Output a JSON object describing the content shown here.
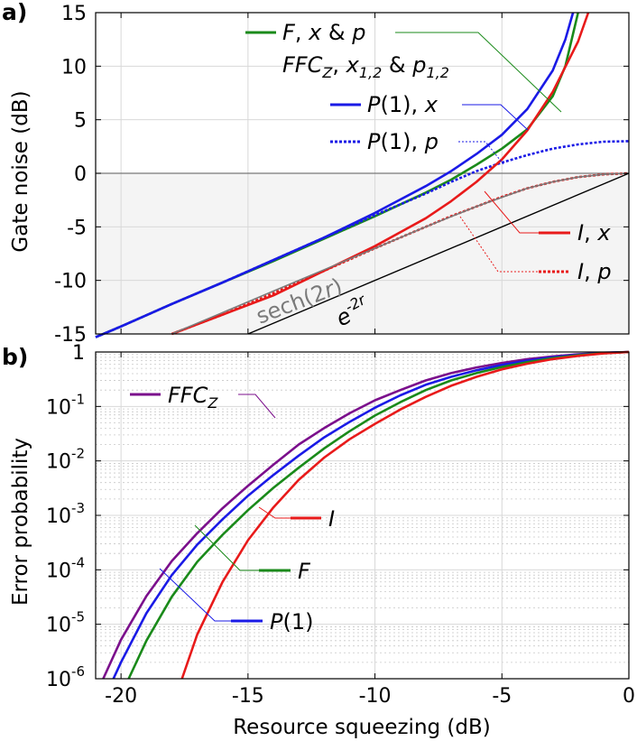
{
  "chart_data": [
    {
      "panel_label": "a)",
      "type": "line",
      "xlabel": "",
      "ylabel": "Gate noise (dB)",
      "xlim": [
        -21,
        0
      ],
      "ylim": [
        -15,
        15
      ],
      "xticks": [
        -20,
        -15,
        -10,
        -5,
        0
      ],
      "yticks": [
        15,
        10,
        5,
        0,
        -5,
        -10,
        -15
      ],
      "ytick_labels": [
        "15",
        "10",
        "5",
        "0",
        "-5",
        "-10",
        "-15"
      ],
      "shaded_region": {
        "y_from": -15,
        "y_to": 0,
        "color": "#f4f4f4"
      },
      "grid": true,
      "series": [
        {
          "name": "F, x & p",
          "color": "#1a8a1a",
          "style": "solid",
          "x": [
            -21,
            -20,
            -18,
            -16,
            -14,
            -12,
            -10,
            -8,
            -7,
            -6,
            -5,
            -4,
            -3,
            -2.5,
            -2
          ],
          "y": [
            -15.3,
            -14.3,
            -12.2,
            -10.2,
            -8.2,
            -6.1,
            -4.0,
            -1.8,
            -0.6,
            0.8,
            2.3,
            4.1,
            7.2,
            10.0,
            15.0
          ]
        },
        {
          "name": "P(1), x",
          "color": "#1a1ae6",
          "style": "solid",
          "x": [
            -21,
            -20,
            -18,
            -16,
            -14,
            -12,
            -10,
            -8,
            -7,
            -6,
            -5,
            -4,
            -3,
            -2.5,
            -2.2
          ],
          "y": [
            -15.3,
            -14.3,
            -12.2,
            -10.2,
            -8.1,
            -6.0,
            -3.7,
            -1.2,
            0.2,
            1.8,
            3.6,
            6.0,
            9.6,
            12.5,
            15.0
          ]
        },
        {
          "name": "P(1), p",
          "color": "#1a1ae6",
          "style": "dotted",
          "x": [
            -21,
            -20,
            -18,
            -16,
            -14,
            -12,
            -10,
            -8,
            -7,
            -6,
            -5,
            -4,
            -3,
            -2,
            -1,
            0
          ],
          "y": [
            -15.3,
            -14.3,
            -12.2,
            -10.2,
            -8.1,
            -6.0,
            -3.9,
            -1.9,
            -0.8,
            0.2,
            1.0,
            1.7,
            2.3,
            2.7,
            2.95,
            3.0
          ]
        },
        {
          "name": "I, x",
          "color": "#e81a1a",
          "style": "solid",
          "x": [
            -18,
            -16,
            -14,
            -12,
            -10,
            -8,
            -7,
            -6,
            -5,
            -4,
            -3,
            -2,
            -1.6
          ],
          "y": [
            -15.0,
            -13.2,
            -11.4,
            -9.1,
            -6.8,
            -4.2,
            -2.6,
            -0.8,
            1.3,
            4.0,
            7.6,
            12.3,
            15.0
          ]
        },
        {
          "name": "I, p",
          "color": "#e81a1a",
          "style": "dotted",
          "x": [
            -18,
            -16,
            -14,
            -12,
            -10,
            -8,
            -7,
            -6,
            -5,
            -4,
            -3,
            -2,
            -1,
            0
          ],
          "y": [
            -15.0,
            -13.2,
            -11.2,
            -9.1,
            -7.0,
            -5.0,
            -4.0,
            -3.1,
            -2.2,
            -1.4,
            -0.8,
            -0.35,
            -0.1,
            0.0
          ]
        },
        {
          "name": "sech(2r)",
          "color": "#7a7a7a",
          "style": "solid",
          "x": [
            -18,
            -16,
            -14,
            -12,
            -10,
            -8,
            -6,
            -4,
            -3,
            -2,
            -1,
            0
          ],
          "y": [
            -15.0,
            -13.0,
            -11.0,
            -9.0,
            -7.0,
            -5.0,
            -3.1,
            -1.4,
            -0.8,
            -0.35,
            -0.1,
            0.0
          ]
        },
        {
          "name": "e^{-2r}",
          "color": "#000000",
          "style": "solid",
          "x": [
            -15,
            0
          ],
          "y": [
            -15,
            0
          ]
        }
      ],
      "legend": [
        {
          "text": "F, x & p"
        },
        {
          "text": "FFCZ, x1,2 & p1,2"
        },
        {
          "text": "P(1), x"
        },
        {
          "text": "P(1), p"
        },
        {
          "text": "I, x"
        },
        {
          "text": "I, p"
        }
      ],
      "annotations": [
        "sech(2r)",
        "e-2r"
      ]
    },
    {
      "panel_label": "b)",
      "type": "line",
      "xlabel": "Resource squeezing (dB)",
      "ylabel": "Error probability",
      "xlim": [
        -21,
        0
      ],
      "yscale": "log",
      "ylim": [
        1e-06,
        1.0
      ],
      "xticks": [
        -20,
        -15,
        -10,
        -5,
        0
      ],
      "xtick_labels": [
        "-20",
        "-15",
        "-10",
        "-5",
        "0"
      ],
      "yticks": [
        1,
        0.1,
        0.01,
        0.001,
        0.0001,
        1e-05,
        1e-06
      ],
      "grid": true,
      "series": [
        {
          "name": "FFCZ",
          "color": "#7b0f8c",
          "style": "solid",
          "x": [
            -20.7,
            -20,
            -19,
            -18,
            -17,
            -16,
            -15,
            -14,
            -13,
            -12,
            -11,
            -10,
            -9,
            -8,
            -7,
            -6,
            -5,
            -4,
            -3,
            -2,
            -1,
            0
          ],
          "y": [
            1e-06,
            5.2e-06,
            3.3e-05,
            0.000145,
            0.00047,
            0.00135,
            0.0035,
            0.0085,
            0.02,
            0.04,
            0.075,
            0.13,
            0.2,
            0.3,
            0.41,
            0.52,
            0.63,
            0.74,
            0.83,
            0.91,
            0.97,
            1.0
          ]
        },
        {
          "name": "P(1)",
          "color": "#1a1ae6",
          "style": "solid",
          "x": [
            -20.3,
            -20,
            -19,
            -18,
            -17,
            -16,
            -15,
            -14,
            -13,
            -12,
            -11,
            -10,
            -9,
            -8,
            -7,
            -6,
            -5,
            -4,
            -3,
            -2,
            -1,
            0
          ],
          "y": [
            1e-06,
            2e-06,
            1.6e-05,
            8e-05,
            0.00029,
            0.00085,
            0.0023,
            0.0055,
            0.0125,
            0.027,
            0.052,
            0.095,
            0.16,
            0.25,
            0.35,
            0.46,
            0.58,
            0.69,
            0.8,
            0.89,
            0.96,
            1.0
          ]
        },
        {
          "name": "F",
          "color": "#1a8a1a",
          "style": "solid",
          "x": [
            -19.7,
            -19,
            -18,
            -17,
            -16,
            -15,
            -14,
            -13,
            -12,
            -11,
            -10,
            -9,
            -8,
            -7,
            -6,
            -5,
            -4,
            -3,
            -2,
            -1,
            0
          ],
          "y": [
            1e-06,
            5e-06,
            3.2e-05,
            0.00014,
            0.00044,
            0.00125,
            0.0032,
            0.0075,
            0.017,
            0.035,
            0.068,
            0.12,
            0.2,
            0.3,
            0.41,
            0.53,
            0.65,
            0.77,
            0.87,
            0.95,
            1.0
          ]
        },
        {
          "name": "I",
          "color": "#e81a1a",
          "style": "solid",
          "x": [
            -17.6,
            -17,
            -16,
            -15,
            -14,
            -13,
            -12,
            -11,
            -10,
            -9,
            -8,
            -7,
            -6,
            -5,
            -4,
            -3,
            -2,
            -1,
            0
          ],
          "y": [
            1e-06,
            6.5e-06,
            6e-05,
            0.00035,
            0.0014,
            0.0045,
            0.0115,
            0.025,
            0.048,
            0.088,
            0.15,
            0.24,
            0.35,
            0.48,
            0.61,
            0.74,
            0.85,
            0.94,
            1.0
          ]
        }
      ],
      "legend": [
        {
          "text": "FFCZ"
        },
        {
          "text": "I"
        },
        {
          "text": "F"
        },
        {
          "text": "P(1)"
        }
      ]
    }
  ]
}
